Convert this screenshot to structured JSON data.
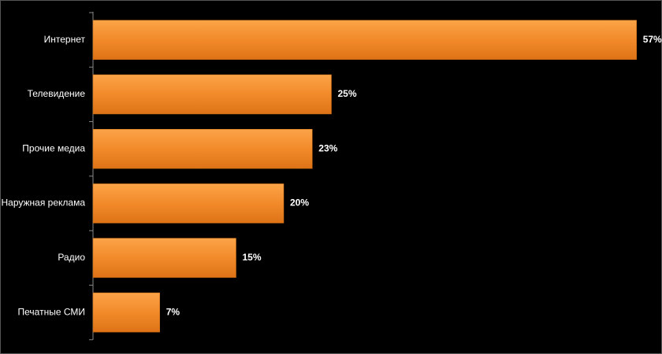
{
  "chart_data": {
    "type": "bar",
    "orientation": "horizontal",
    "categories": [
      "Интернет",
      "Телевидение",
      "Прочие медиа",
      "Наружная реклама",
      "Радио",
      "Печатные СМИ"
    ],
    "values": [
      57,
      25,
      23,
      20,
      15,
      7
    ],
    "value_labels": [
      "57%",
      "25%",
      "23%",
      "20%",
      "15%",
      "7%"
    ],
    "color": "#f28a2a"
  }
}
